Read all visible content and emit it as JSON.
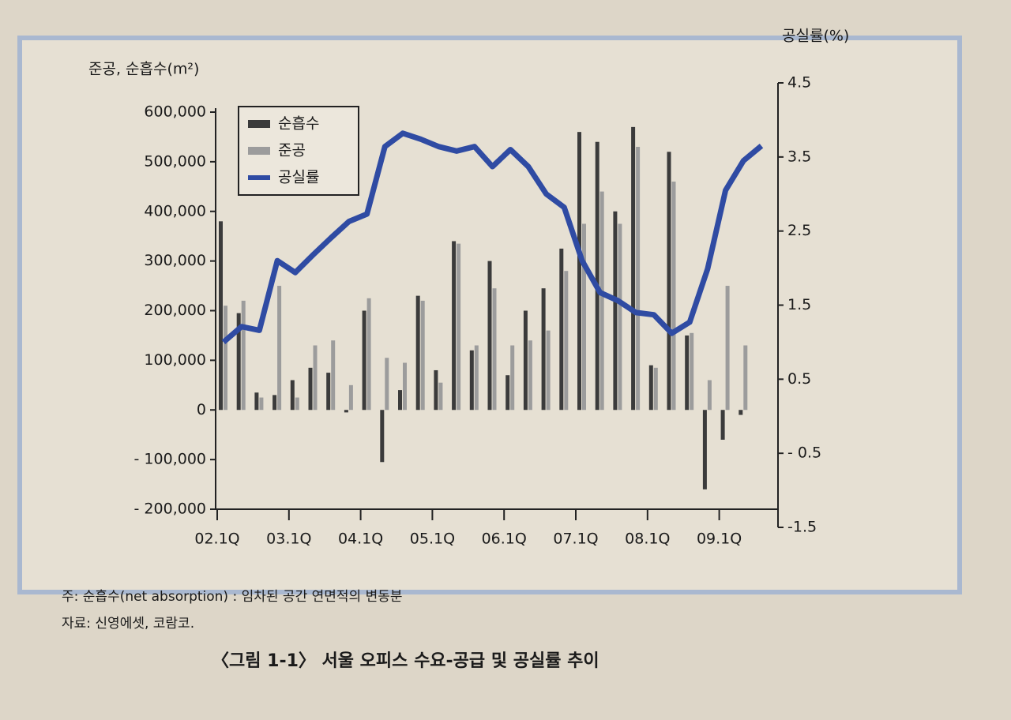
{
  "chart_data": {
    "type": "bar",
    "y_label": "준공, 순흡수(m²)",
    "y2_label": "공실률(%)",
    "note": "주: 순흡수(net absorption) : 임차된 공간 연면적의 변동분",
    "source": "자료: 신영에셋, 코람코.",
    "caption": "〈그림 1-1〉 서울 오피스 수요-공급 및 공실률 추이",
    "categories": [
      "02.1Q",
      null,
      null,
      null,
      "03.1Q",
      null,
      null,
      null,
      "04.1Q",
      null,
      null,
      null,
      "05.1Q",
      null,
      null,
      null,
      "06.1Q",
      null,
      null,
      null,
      "07.1Q",
      null,
      null,
      null,
      "08.1Q",
      null,
      null,
      null,
      "09.1Q",
      null,
      null
    ],
    "series": [
      {
        "name": "순흡수",
        "color": "#3b3b3b",
        "values": [
          380000,
          195000,
          35000,
          30000,
          60000,
          85000,
          75000,
          -5000,
          200000,
          -105000,
          40000,
          230000,
          80000,
          340000,
          120000,
          300000,
          70000,
          200000,
          245000,
          325000,
          560000,
          540000,
          400000,
          570000,
          90000,
          520000,
          150000,
          -160000,
          -60000,
          -10000,
          null
        ]
      },
      {
        "name": "준공",
        "color": "#9c9c9c",
        "values": [
          210000,
          220000,
          25000,
          250000,
          25000,
          130000,
          140000,
          50000,
          225000,
          105000,
          95000,
          220000,
          55000,
          335000,
          130000,
          245000,
          130000,
          140000,
          160000,
          280000,
          375000,
          440000,
          375000,
          530000,
          85000,
          460000,
          155000,
          60000,
          250000,
          130000,
          null
        ]
      },
      {
        "name": "공실률",
        "color": "#2f4ba3",
        "type": "line",
        "axis": "y2",
        "values": [
          1.0,
          1.21,
          1.16,
          2.1,
          1.94,
          2.18,
          2.41,
          2.63,
          2.73,
          3.64,
          3.82,
          3.74,
          3.64,
          3.58,
          3.64,
          3.37,
          3.6,
          3.37,
          3.0,
          2.82,
          2.1,
          1.67,
          1.56,
          1.4,
          1.37,
          1.12,
          1.27,
          1.99,
          3.05,
          3.45,
          3.65
        ]
      }
    ],
    "ylim": [
      -200000,
      600000
    ],
    "yticks": [
      {
        "value": -200000,
        "label": "- 200,000"
      },
      {
        "value": -100000,
        "label": "- 100,000"
      },
      0,
      {
        "value": 100000,
        "label": "100,000"
      },
      {
        "value": 200000,
        "label": "200,000"
      },
      {
        "value": 300000,
        "label": "300,000"
      },
      {
        "value": 400000,
        "label": "400,000"
      },
      {
        "value": 500000,
        "label": "500,000"
      },
      {
        "value": 600000,
        "label": "600,000"
      }
    ],
    "y2lim": [
      -1.5,
      4.5
    ],
    "y2ticks": [
      -1.5,
      {
        "value": -0.5,
        "label": "- 0.5"
      },
      0.5,
      1.5,
      2.5,
      3.5,
      4.5
    ],
    "legend": "upper left"
  }
}
